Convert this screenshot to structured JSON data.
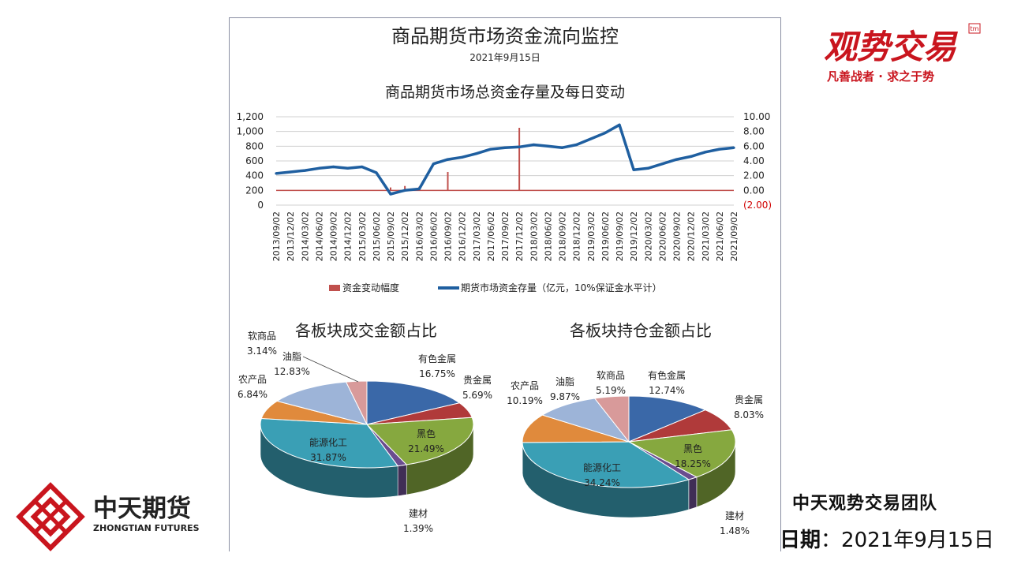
{
  "header": {
    "main_title": "商品期货市场资金流向监控",
    "date": "2021年9月15日",
    "chart_title": "商品期货市场总资金存量及每日变动"
  },
  "brand": {
    "top_logo_text": "观势交易",
    "top_logo_badge": "tm",
    "top_slogan": "凡善战者 · 求之于势",
    "bottom_logo_cn": "中天期货",
    "bottom_logo_en": "ZHONGTIAN FUTURES",
    "team": "中天观势交易团队",
    "date_label": "日期",
    "date_sep": "：",
    "date_value": "2021年9月15日",
    "red": "#c9151e"
  },
  "chart_data": [
    {
      "type": "line",
      "title": "商品期货市场总资金存量及每日变动",
      "x": [
        "2013/09/02",
        "2013/12/02",
        "2014/03/02",
        "2014/06/02",
        "2014/09/02",
        "2014/12/02",
        "2015/03/02",
        "2015/06/02",
        "2015/09/02",
        "2015/12/02",
        "2016/03/02",
        "2016/06/02",
        "2016/09/02",
        "2016/12/02",
        "2017/03/02",
        "2017/06/02",
        "2017/09/02",
        "2017/12/02",
        "2018/03/02",
        "2018/06/02",
        "2018/09/02",
        "2018/12/02",
        "2019/03/02",
        "2019/06/02",
        "2019/09/02",
        "2019/12/02",
        "2020/03/02",
        "2020/06/02",
        "2020/09/02",
        "2020/12/02",
        "2021/03/02",
        "2021/06/02",
        "2021/09/02"
      ],
      "y_left_ticks": [
        "1,200",
        "1,000",
        "800",
        "600",
        "400",
        "200",
        "0"
      ],
      "y_right_ticks": [
        "10.00",
        "8.00",
        "6.00",
        "4.00",
        "2.00",
        "0.00",
        "(2.00)"
      ],
      "ylim_left": [
        0,
        1200
      ],
      "ylim_right": [
        -2,
        10
      ],
      "grid": true,
      "legend_position": "bottom",
      "series": [
        {
          "name": "资金变动幅度",
          "axis": "right",
          "style": "bar",
          "color": "#c0504d",
          "values": [
            0,
            0,
            0,
            0,
            0,
            0,
            0,
            0,
            0.4,
            0.6,
            0.5,
            0,
            2.5,
            0,
            0,
            0,
            0,
            8.5,
            0,
            0,
            0,
            0,
            0,
            0,
            0,
            0,
            0,
            0,
            0,
            0,
            0,
            0,
            0
          ]
        },
        {
          "name": "期货市场资金存量（亿元，10%保证金水平计）",
          "axis": "left",
          "style": "line",
          "color": "#1f5fa0",
          "values": [
            430,
            450,
            470,
            500,
            520,
            500,
            520,
            440,
            150,
            200,
            220,
            560,
            620,
            650,
            700,
            760,
            780,
            790,
            820,
            800,
            780,
            820,
            900,
            980,
            1090,
            480,
            500,
            560,
            620,
            660,
            720,
            760,
            780
          ]
        }
      ]
    },
    {
      "type": "pie",
      "title": "各板块成交金额占比",
      "slices": [
        {
          "label": "有色金属",
          "value": 16.75,
          "text": "16.75%",
          "color": "#3a68a8"
        },
        {
          "label": "贵金属",
          "value": 5.69,
          "text": "5.69%",
          "color": "#b03a3a"
        },
        {
          "label": "黑色",
          "value": 21.49,
          "text": "21.49%",
          "color": "#86a83f"
        },
        {
          "label": "建材",
          "value": 1.39,
          "text": "1.39%",
          "color": "#6a4d8f"
        },
        {
          "label": "能源化工",
          "value": 31.87,
          "text": "31.87%",
          "color": "#3a9fb5"
        },
        {
          "label": "农产品",
          "value": 6.84,
          "text": "6.84%",
          "color": "#e08a3c"
        },
        {
          "label": "油脂",
          "value": 12.83,
          "text": "12.83%",
          "color": "#9db4d8"
        },
        {
          "label": "软商品",
          "value": 3.14,
          "text": "3.14%",
          "color": "#d89a9a"
        }
      ]
    },
    {
      "type": "pie",
      "title": "各板块持仓金额占比",
      "slices": [
        {
          "label": "有色金属",
          "value": 12.74,
          "text": "12.74%",
          "color": "#3a68a8"
        },
        {
          "label": "贵金属",
          "value": 8.03,
          "text": "8.03%",
          "color": "#b03a3a"
        },
        {
          "label": "黑色",
          "value": 18.25,
          "text": "18.25%",
          "color": "#86a83f"
        },
        {
          "label": "建材",
          "value": 1.48,
          "text": "1.48%",
          "color": "#6a4d8f"
        },
        {
          "label": "能源化工",
          "value": 34.24,
          "text": "34.24%",
          "color": "#3a9fb5"
        },
        {
          "label": "农产品",
          "value": 10.19,
          "text": "10.19%",
          "color": "#e08a3c"
        },
        {
          "label": "油脂",
          "value": 9.87,
          "text": "9.87%",
          "color": "#9db4d8"
        },
        {
          "label": "软商品",
          "value": 5.19,
          "text": "5.19%",
          "color": "#d89a9a"
        }
      ]
    }
  ]
}
